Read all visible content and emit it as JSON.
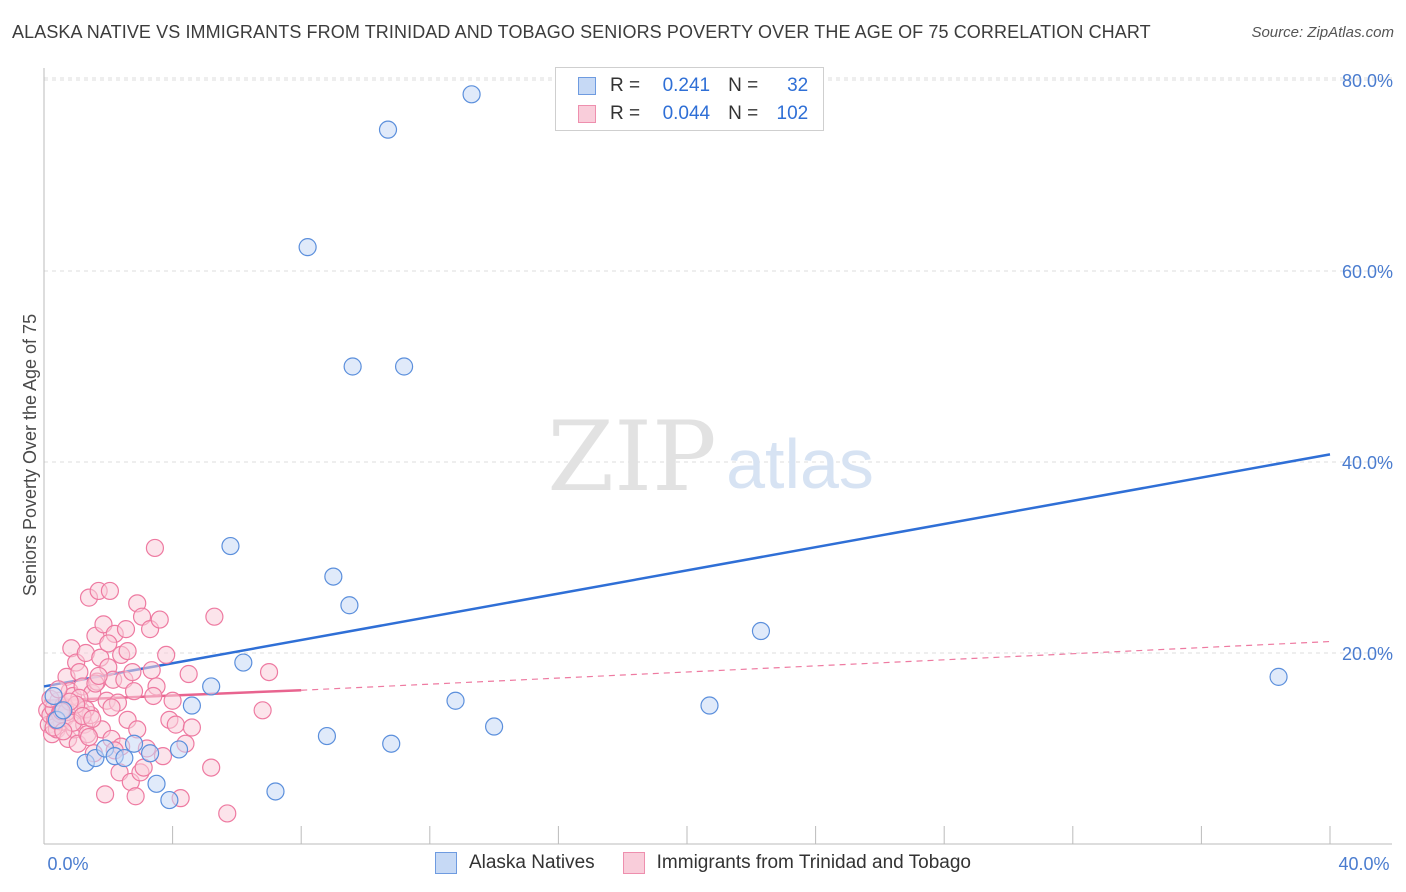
{
  "title": "ALASKA NATIVE VS IMMIGRANTS FROM TRINIDAD AND TOBAGO SENIORS POVERTY OVER THE AGE OF 75 CORRELATION CHART",
  "source": "Source: ZipAtlas.com",
  "watermark": {
    "zip": "ZIP",
    "atlas": "atlas"
  },
  "legend": {
    "r_label": "R =",
    "n_label": "N =",
    "rows": [
      {
        "r": "0.241",
        "n": "32",
        "color": "#6e9be0",
        "fill": "#c6d9f5"
      },
      {
        "r": "0.044",
        "n": "102",
        "color": "#ee8fae",
        "fill": "#f9cdda"
      }
    ]
  },
  "chart_data": {
    "type": "scatter",
    "xlabel": "",
    "ylabel": "Seniors Poverty Over the Age of 75",
    "xlim": [
      0,
      40
    ],
    "ylim": [
      0,
      82
    ],
    "x_tick_labels": [
      "0.0%",
      "40.0%"
    ],
    "y_ticks": [
      20,
      40,
      60,
      80
    ],
    "y_tick_labels": [
      "20.0%",
      "40.0%",
      "60.0%",
      "80.0%"
    ],
    "grid": "horizontal dashed",
    "legend_placement": "bottom",
    "series": [
      {
        "name": "Alaska Natives",
        "color": "#5b8fdc",
        "fill": "#c6d9f5",
        "trend": {
          "x": [
            0,
            40
          ],
          "y": [
            16.5,
            40.8
          ],
          "style": "solid"
        },
        "points": [
          [
            0.3,
            15.5
          ],
          [
            1.3,
            8.5
          ],
          [
            1.6,
            9.0
          ],
          [
            1.9,
            10.0
          ],
          [
            2.2,
            9.2
          ],
          [
            2.8,
            10.5
          ],
          [
            3.3,
            9.5
          ],
          [
            3.5,
            6.3
          ],
          [
            3.9,
            4.6
          ],
          [
            4.2,
            9.9
          ],
          [
            4.6,
            14.5
          ],
          [
            5.2,
            16.5
          ],
          [
            5.8,
            31.2
          ],
          [
            6.2,
            19.0
          ],
          [
            7.2,
            5.5
          ],
          [
            8.2,
            62.5
          ],
          [
            8.8,
            11.3
          ],
          [
            9.0,
            28.0
          ],
          [
            9.5,
            25.0
          ],
          [
            9.6,
            50.0
          ],
          [
            10.7,
            74.8
          ],
          [
            10.8,
            10.5
          ],
          [
            11.2,
            50.0
          ],
          [
            13.3,
            78.5
          ],
          [
            12.8,
            15.0
          ],
          [
            14.0,
            12.3
          ],
          [
            20.7,
            14.5
          ],
          [
            22.3,
            22.3
          ],
          [
            38.4,
            17.5
          ],
          [
            0.4,
            13.0
          ],
          [
            0.6,
            14.0
          ],
          [
            2.5,
            9.0
          ]
        ]
      },
      {
        "name": "Immigrants from Trinidad and Tobago",
        "color": "#ee7aa1",
        "fill": "#f9cdda",
        "trend": {
          "x": [
            0,
            8
          ],
          "y": [
            15.0,
            16.1
          ],
          "style": "solid",
          "dashed_to": [
            40,
            21.2
          ]
        },
        "points": [
          [
            0.1,
            14.0
          ],
          [
            0.15,
            12.5
          ],
          [
            0.2,
            13.5
          ],
          [
            0.25,
            11.5
          ],
          [
            0.3,
            14.2
          ],
          [
            0.35,
            13.0
          ],
          [
            0.4,
            12.0
          ],
          [
            0.45,
            15.0
          ],
          [
            0.5,
            13.8
          ],
          [
            0.55,
            12.8
          ],
          [
            0.6,
            14.5
          ],
          [
            0.65,
            13.2
          ],
          [
            0.7,
            17.5
          ],
          [
            0.75,
            11.0
          ],
          [
            0.8,
            16.0
          ],
          [
            0.85,
            20.5
          ],
          [
            0.9,
            15.5
          ],
          [
            0.95,
            12.0
          ],
          [
            1.0,
            19.0
          ],
          [
            1.05,
            10.5
          ],
          [
            1.1,
            18.0
          ],
          [
            1.15,
            14.0
          ],
          [
            1.2,
            16.5
          ],
          [
            1.25,
            12.5
          ],
          [
            1.3,
            20.0
          ],
          [
            1.35,
            11.5
          ],
          [
            1.4,
            25.8
          ],
          [
            1.45,
            13.5
          ],
          [
            1.5,
            15.8
          ],
          [
            1.55,
            9.5
          ],
          [
            1.6,
            21.8
          ],
          [
            1.65,
            17.0
          ],
          [
            1.7,
            26.5
          ],
          [
            1.75,
            19.5
          ],
          [
            1.8,
            12.0
          ],
          [
            1.85,
            23.0
          ],
          [
            1.9,
            5.2
          ],
          [
            1.95,
            15.0
          ],
          [
            2.0,
            18.5
          ],
          [
            2.05,
            26.5
          ],
          [
            2.1,
            11.0
          ],
          [
            2.15,
            17.2
          ],
          [
            2.2,
            22.0
          ],
          [
            2.3,
            14.8
          ],
          [
            2.35,
            7.5
          ],
          [
            2.4,
            19.8
          ],
          [
            2.5,
            17.2
          ],
          [
            2.55,
            22.5
          ],
          [
            2.6,
            13.0
          ],
          [
            2.7,
            6.5
          ],
          [
            2.75,
            18.0
          ],
          [
            2.8,
            16.0
          ],
          [
            2.85,
            5.0
          ],
          [
            2.9,
            25.2
          ],
          [
            3.0,
            7.5
          ],
          [
            3.05,
            23.8
          ],
          [
            3.1,
            8.0
          ],
          [
            3.2,
            10.0
          ],
          [
            3.3,
            22.5
          ],
          [
            3.35,
            18.2
          ],
          [
            3.45,
            31.0
          ],
          [
            3.5,
            16.5
          ],
          [
            3.6,
            23.5
          ],
          [
            3.7,
            9.2
          ],
          [
            3.8,
            19.8
          ],
          [
            3.9,
            13.0
          ],
          [
            4.0,
            15.0
          ],
          [
            4.1,
            12.5
          ],
          [
            4.25,
            4.8
          ],
          [
            4.4,
            10.5
          ],
          [
            4.5,
            17.8
          ],
          [
            4.6,
            12.2
          ],
          [
            5.2,
            8.0
          ],
          [
            5.3,
            23.8
          ],
          [
            5.7,
            3.2
          ],
          [
            6.8,
            14.0
          ],
          [
            7.0,
            18.0
          ],
          [
            0.3,
            12.2
          ],
          [
            0.5,
            13.6
          ],
          [
            0.7,
            13.8
          ],
          [
            0.9,
            12.7
          ],
          [
            1.1,
            15.3
          ],
          [
            1.3,
            14.1
          ],
          [
            1.6,
            16.8
          ],
          [
            2.0,
            21.0
          ],
          [
            2.4,
            10.2
          ],
          [
            2.6,
            20.2
          ],
          [
            0.2,
            15.2
          ],
          [
            0.4,
            12.9
          ],
          [
            0.6,
            11.8
          ],
          [
            1.0,
            14.6
          ],
          [
            1.2,
            13.4
          ],
          [
            1.4,
            11.2
          ],
          [
            1.7,
            17.6
          ],
          [
            2.2,
            9.8
          ],
          [
            2.9,
            12.0
          ],
          [
            3.4,
            15.5
          ],
          [
            0.8,
            14.9
          ],
          [
            1.5,
            13.1
          ],
          [
            2.1,
            14.3
          ],
          [
            0.45,
            16.2
          ],
          [
            0.55,
            13.9
          ]
        ]
      }
    ]
  }
}
